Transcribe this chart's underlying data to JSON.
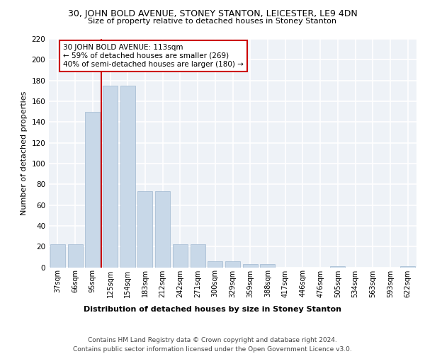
{
  "title1": "30, JOHN BOLD AVENUE, STONEY STANTON, LEICESTER, LE9 4DN",
  "title2": "Size of property relative to detached houses in Stoney Stanton",
  "xlabel": "Distribution of detached houses by size in Stoney Stanton",
  "ylabel": "Number of detached properties",
  "footer": "Contains HM Land Registry data © Crown copyright and database right 2024.\nContains public sector information licensed under the Open Government Licence v3.0.",
  "categories": [
    "37sqm",
    "66sqm",
    "95sqm",
    "125sqm",
    "154sqm",
    "183sqm",
    "212sqm",
    "242sqm",
    "271sqm",
    "300sqm",
    "329sqm",
    "359sqm",
    "388sqm",
    "417sqm",
    "446sqm",
    "476sqm",
    "505sqm",
    "534sqm",
    "563sqm",
    "593sqm",
    "622sqm"
  ],
  "values": [
    22,
    22,
    150,
    175,
    175,
    73,
    73,
    22,
    22,
    6,
    6,
    3,
    3,
    0,
    0,
    0,
    1,
    0,
    0,
    0,
    1
  ],
  "bar_color": "#c8d8e8",
  "bar_edge_color": "#a0b8d0",
  "bg_color": "#eef2f7",
  "grid_color": "#ffffff",
  "vline_color": "#cc0000",
  "annotation_box_color": "#cc0000",
  "ylim": [
    0,
    220
  ],
  "yticks": [
    0,
    20,
    40,
    60,
    80,
    100,
    120,
    140,
    160,
    180,
    200,
    220
  ],
  "title1_fontsize": 9,
  "title2_fontsize": 8,
  "ylabel_fontsize": 8,
  "xlabel_fontsize": 8,
  "tick_fontsize": 7,
  "footer_fontsize": 6.5,
  "annotation_fontsize": 7.5
}
